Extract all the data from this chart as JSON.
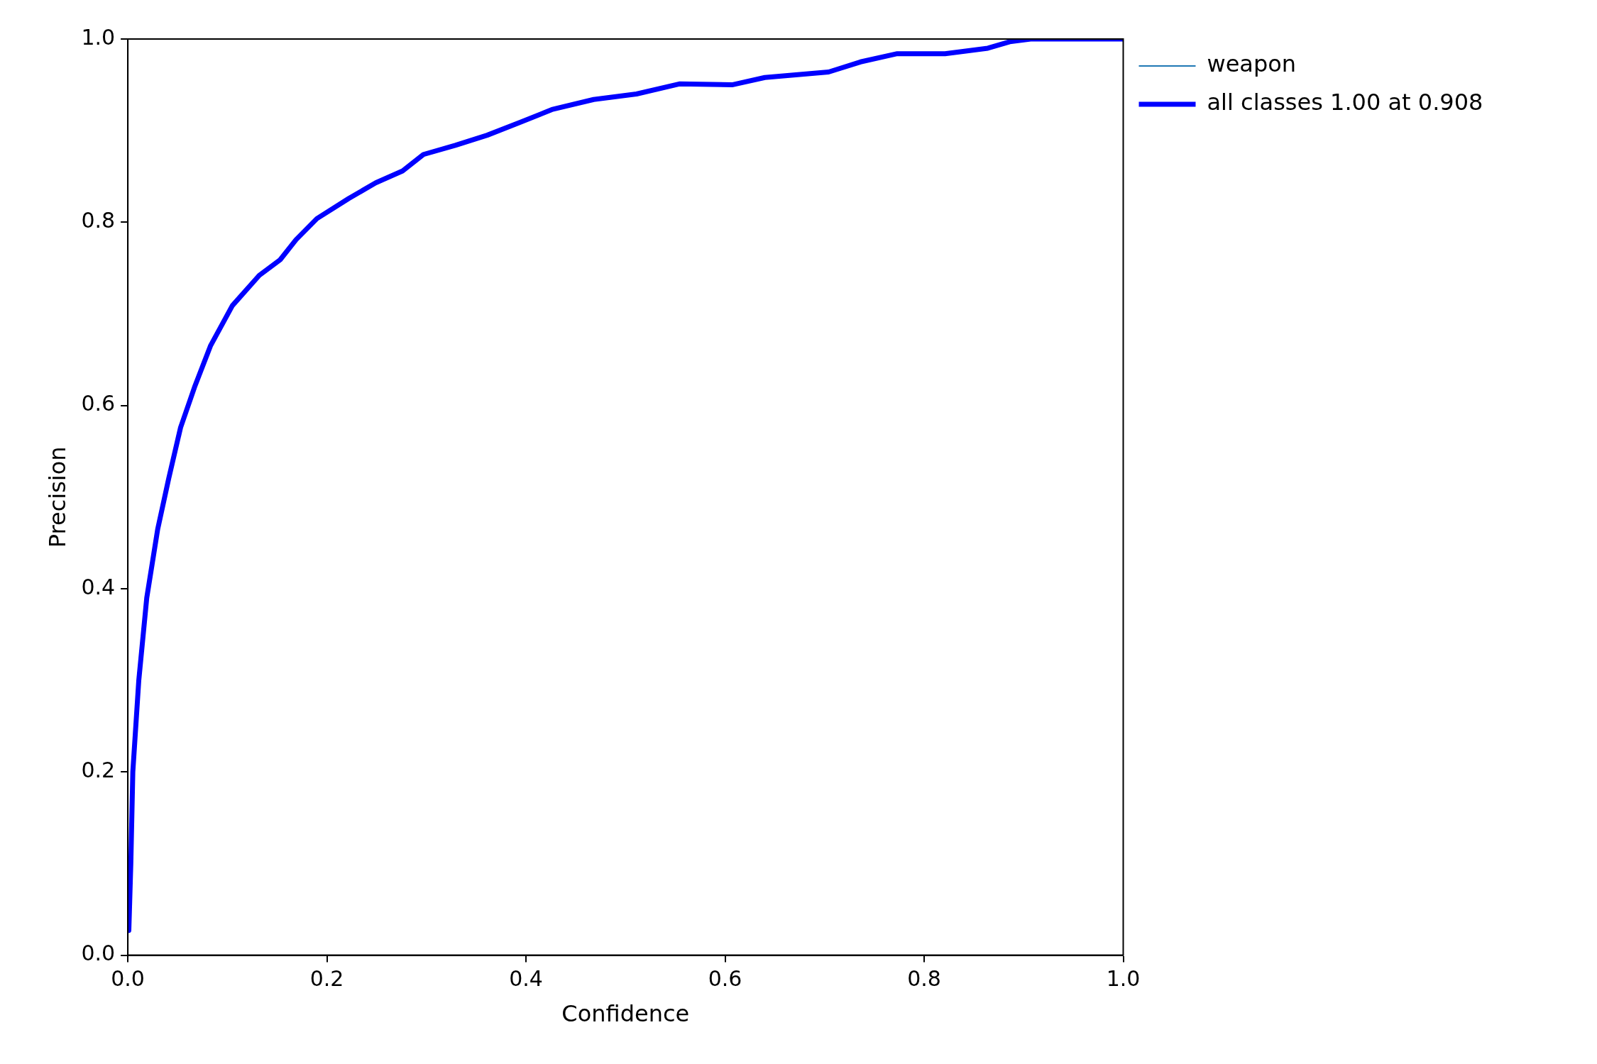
{
  "chart_data": {
    "type": "line",
    "xlabel": "Confidence",
    "ylabel": "Precision",
    "xlim": [
      0,
      1
    ],
    "ylim": [
      0,
      1
    ],
    "xticks": [
      {
        "value": 0,
        "label": "0.0"
      },
      0.2,
      0.4,
      0.6,
      0.8,
      {
        "value": 1,
        "label": "1.0"
      }
    ],
    "yticks": [
      {
        "value": 0,
        "label": "0.0"
      },
      0.2,
      0.4,
      0.6,
      0.8,
      {
        "value": 1,
        "label": "1.0"
      }
    ],
    "grid": false,
    "legend": "top right",
    "marker": "none",
    "line_style": "solid",
    "series": [
      {
        "name": "weapon",
        "color": "#1f77b4"
      },
      {
        "name": "all classes 1.00 at 0.908",
        "color": "#0000ff",
        "x": [
          0.001,
          0.003,
          0.005,
          0.011,
          0.019,
          0.03,
          0.041,
          0.053,
          0.067,
          0.083,
          0.105,
          0.132,
          0.153,
          0.169,
          0.19,
          0.222,
          0.249,
          0.276,
          0.297,
          0.329,
          0.361,
          0.394,
          0.426,
          0.468,
          0.511,
          0.554,
          0.607,
          0.64,
          0.704,
          0.736,
          0.773,
          0.821,
          0.864,
          0.886,
          0.907,
          1.0
        ],
        "values": [
          0.027,
          0.1,
          0.2,
          0.3,
          0.39,
          0.465,
          0.52,
          0.576,
          0.62,
          0.665,
          0.709,
          0.742,
          0.759,
          0.781,
          0.804,
          0.826,
          0.843,
          0.856,
          0.874,
          0.884,
          0.895,
          0.909,
          0.923,
          0.934,
          0.94,
          0.951,
          0.95,
          0.958,
          0.964,
          0.975,
          0.984,
          0.984,
          0.99,
          0.997,
          1.0,
          1.0
        ]
      }
    ]
  }
}
